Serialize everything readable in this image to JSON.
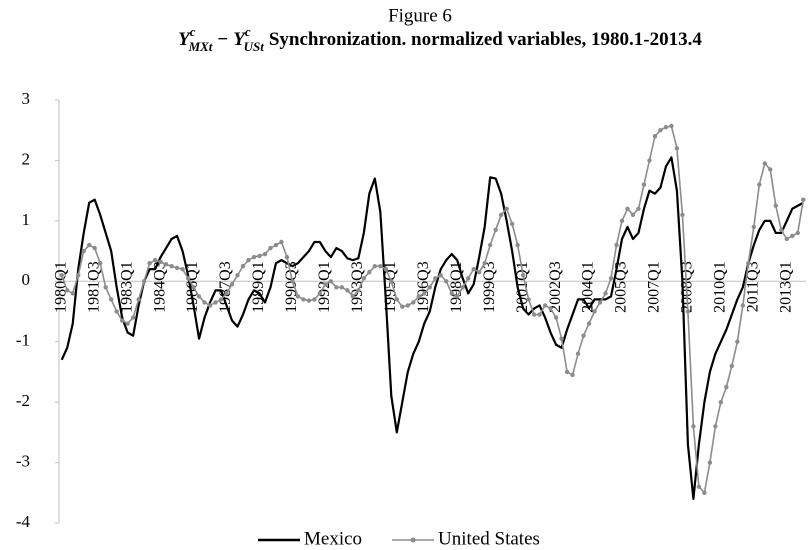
{
  "chart_data": {
    "type": "line",
    "title": "Figure 6",
    "formula": {
      "left_base": "Y",
      "left_sup": "c",
      "left_sub": "MXt",
      "op": "−",
      "right_base": "Y",
      "right_sup": "c",
      "right_sub": "USt"
    },
    "subtitle": "Synchronization. normalized variables, 1980.1-2013.4",
    "categories": [
      "1980Q1",
      null,
      null,
      null,
      null,
      null,
      "1981Q3",
      null,
      null,
      null,
      null,
      null,
      "1983Q1",
      null,
      null,
      null,
      null,
      null,
      "1984Q3",
      null,
      null,
      null,
      null,
      null,
      "1986Q1",
      null,
      null,
      null,
      null,
      null,
      "1987Q3",
      null,
      null,
      null,
      null,
      null,
      "1989Q1",
      null,
      null,
      null,
      null,
      null,
      "1990Q3",
      null,
      null,
      null,
      null,
      null,
      "1992Q1",
      null,
      null,
      null,
      null,
      null,
      "1993Q3",
      null,
      null,
      null,
      null,
      null,
      "1995Q1",
      null,
      null,
      null,
      null,
      null,
      "1996Q3",
      null,
      null,
      null,
      null,
      null,
      "1998Q1",
      null,
      null,
      null,
      null,
      null,
      "1999Q3",
      null,
      null,
      null,
      null,
      null,
      "2001Q1",
      null,
      null,
      null,
      null,
      null,
      "2002Q3",
      null,
      null,
      null,
      null,
      null,
      "2004Q1",
      null,
      null,
      null,
      null,
      null,
      "2005Q3",
      null,
      null,
      null,
      null,
      null,
      "2007Q1",
      null,
      null,
      null,
      null,
      null,
      "2008Q3",
      null,
      null,
      null,
      null,
      null,
      "2010Q1",
      null,
      null,
      null,
      null,
      null,
      "2011Q3",
      null,
      null,
      null,
      null,
      null,
      "2013Q1",
      null,
      null,
      null
    ],
    "series": [
      {
        "name": "Mexico",
        "color": "#000000",
        "markers": false,
        "values": [
          -1.3,
          -1.1,
          -0.7,
          0.2,
          0.8,
          1.3,
          1.35,
          1.1,
          0.8,
          0.5,
          -0.1,
          -0.6,
          -0.85,
          -0.9,
          -0.4,
          0.0,
          0.2,
          0.2,
          0.4,
          0.55,
          0.7,
          0.75,
          0.5,
          0.1,
          -0.4,
          -0.95,
          -0.6,
          -0.35,
          -0.15,
          -0.15,
          -0.4,
          -0.65,
          -0.75,
          -0.55,
          -0.3,
          -0.15,
          -0.2,
          -0.35,
          -0.1,
          0.3,
          0.35,
          0.3,
          0.25,
          0.3,
          0.4,
          0.5,
          0.65,
          0.65,
          0.5,
          0.4,
          0.55,
          0.5,
          0.38,
          0.35,
          0.38,
          0.8,
          1.45,
          1.7,
          1.15,
          -0.3,
          -1.9,
          -2.5,
          -2.0,
          -1.5,
          -1.2,
          -1.0,
          -0.7,
          -0.5,
          -0.1,
          0.2,
          0.35,
          0.45,
          0.35,
          0.05,
          -0.2,
          -0.05,
          0.4,
          0.9,
          1.72,
          1.7,
          1.45,
          1.0,
          0.5,
          -0.1,
          -0.45,
          -0.55,
          -0.45,
          -0.4,
          -0.6,
          -0.85,
          -1.05,
          -1.1,
          -0.8,
          -0.55,
          -0.3,
          -0.3,
          -0.45,
          -0.3,
          -0.3,
          -0.3,
          -0.25,
          0.2,
          0.7,
          0.9,
          0.7,
          0.8,
          1.2,
          1.5,
          1.45,
          1.55,
          1.9,
          2.05,
          1.5,
          0.0,
          -2.7,
          -3.6,
          -2.7,
          -2.0,
          -1.5,
          -1.2,
          -1.0,
          -0.8,
          -0.55,
          -0.3,
          -0.1,
          0.3,
          0.6,
          0.85,
          1.0,
          1.0,
          0.8,
          0.8,
          1.0,
          1.2,
          1.25,
          1.3
        ]
      },
      {
        "name": "United States",
        "color": "#8c8c8c",
        "markers": true,
        "values": [
          0.1,
          -0.15,
          -0.2,
          0.1,
          0.5,
          0.6,
          0.55,
          0.3,
          -0.1,
          -0.3,
          -0.5,
          -0.65,
          -0.7,
          -0.6,
          -0.3,
          0.0,
          0.3,
          0.35,
          0.32,
          0.28,
          0.25,
          0.22,
          0.2,
          0.05,
          -0.1,
          -0.25,
          -0.35,
          -0.4,
          -0.35,
          -0.3,
          -0.2,
          -0.05,
          0.1,
          0.25,
          0.35,
          0.4,
          0.42,
          0.45,
          0.55,
          0.6,
          0.65,
          0.4,
          0.0,
          -0.25,
          -0.3,
          -0.32,
          -0.3,
          -0.2,
          -0.05,
          0.0,
          -0.1,
          -0.1,
          -0.15,
          -0.25,
          -0.15,
          0.05,
          0.15,
          0.25,
          0.25,
          0.2,
          0.0,
          -0.3,
          -0.42,
          -0.4,
          -0.35,
          -0.25,
          -0.2,
          -0.1,
          0.05,
          0.1,
          0.0,
          -0.2,
          -0.25,
          -0.1,
          0.05,
          0.2,
          0.15,
          0.3,
          0.6,
          0.85,
          1.1,
          1.2,
          0.95,
          0.6,
          0.1,
          -0.3,
          -0.55,
          -0.55,
          -0.4,
          -0.45,
          -0.6,
          -0.95,
          -1.5,
          -1.55,
          -1.2,
          -0.9,
          -0.7,
          -0.5,
          -0.35,
          -0.2,
          0.05,
          0.6,
          1.0,
          1.2,
          1.1,
          1.2,
          1.6,
          2.0,
          2.4,
          2.5,
          2.55,
          2.57,
          2.2,
          1.1,
          -0.5,
          -2.4,
          -3.4,
          -3.5,
          -3.0,
          -2.4,
          -2.0,
          -1.75,
          -1.4,
          -1.0,
          -0.4,
          0.3,
          0.9,
          1.6,
          1.95,
          1.85,
          1.25,
          0.85,
          0.7,
          0.75,
          0.8,
          1.35
        ]
      }
    ],
    "ylim": [
      -4,
      3
    ],
    "yticks": [
      -4,
      -3,
      -2,
      -1,
      0,
      1,
      2,
      3
    ],
    "grid": false,
    "legend": "bottom"
  }
}
